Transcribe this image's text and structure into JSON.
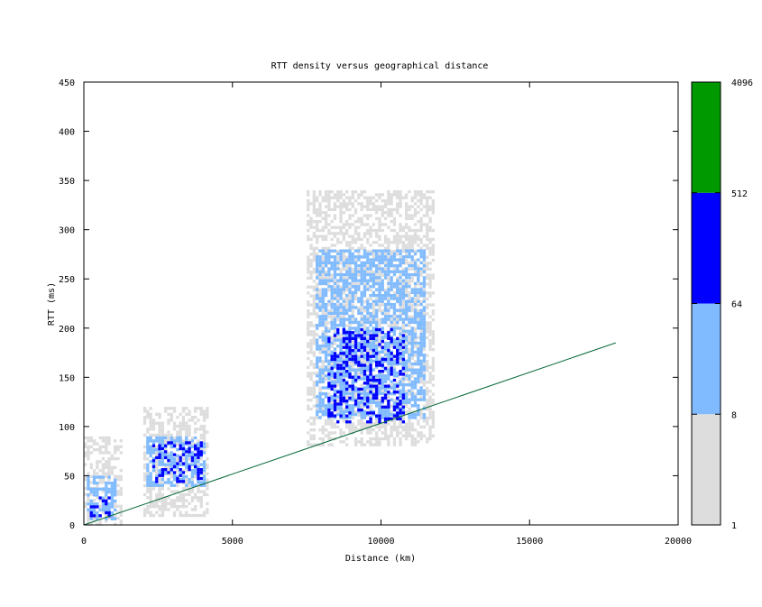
{
  "chart_data": {
    "type": "heatmap",
    "title": "RTT density versus geographical distance",
    "xlabel": "Distance (km)",
    "ylabel": "RTT (ms)",
    "xlim": [
      0,
      20000
    ],
    "ylim": [
      0,
      450
    ],
    "x_ticks": [
      0,
      5000,
      10000,
      15000,
      20000
    ],
    "y_ticks": [
      0,
      50,
      100,
      150,
      200,
      250,
      300,
      350,
      400,
      450
    ],
    "grid": false,
    "colorbar": {
      "scale": "log2",
      "range": [
        1,
        4096
      ],
      "tick_labels": [
        "1",
        "8",
        "64",
        "512",
        "4096"
      ],
      "bands": [
        {
          "from": 1,
          "to": 8,
          "color": "#dddddd"
        },
        {
          "from": 8,
          "to": 64,
          "color": "#80bbff"
        },
        {
          "from": 64,
          "to": 512,
          "color": "#0000ff"
        },
        {
          "from": 512,
          "to": 4096,
          "color": "#009900"
        }
      ]
    },
    "clusters": [
      {
        "x_range": [
          0,
          1300
        ],
        "rtt_range": [
          0,
          90
        ],
        "density": "1-8"
      },
      {
        "x_range": [
          100,
          1100
        ],
        "rtt_range": [
          5,
          50
        ],
        "density": "8-64"
      },
      {
        "x_range": [
          200,
          900
        ],
        "rtt_range": [
          8,
          35
        ],
        "density": "64-512"
      },
      {
        "x_range": [
          2000,
          4200
        ],
        "rtt_range": [
          10,
          120
        ],
        "density": "1-8"
      },
      {
        "x_range": [
          2100,
          4100
        ],
        "rtt_range": [
          40,
          90
        ],
        "density": "8-64"
      },
      {
        "x_range": [
          2300,
          4000
        ],
        "rtt_range": [
          45,
          85
        ],
        "density": "64-512"
      },
      {
        "x_range": [
          7500,
          11800
        ],
        "rtt_range": [
          80,
          340
        ],
        "density": "1-8"
      },
      {
        "x_range": [
          7800,
          11500
        ],
        "rtt_range": [
          110,
          280
        ],
        "density": "8-64"
      },
      {
        "x_range": [
          8200,
          10800
        ],
        "rtt_range": [
          105,
          200
        ],
        "density": "64-512"
      }
    ],
    "reference_line": {
      "color": "#006633",
      "points": [
        [
          0,
          0
        ],
        [
          17900,
          185
        ]
      ]
    }
  }
}
